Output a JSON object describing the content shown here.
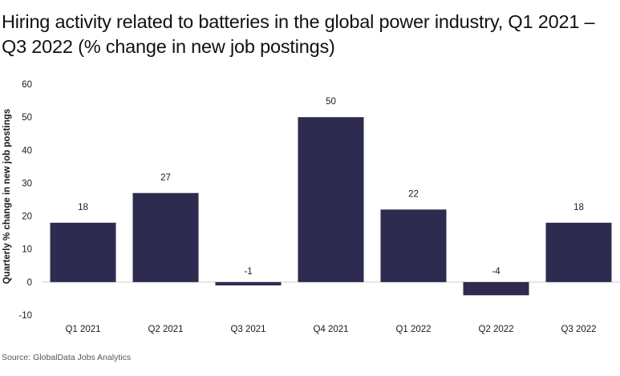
{
  "title": "Hiring activity related to batteries in the global power industry, Q1 2021 – Q3 2022 (% change in new job postings)",
  "source": "Source: GlobalData Jobs Analytics",
  "colors": {
    "bar": "#2e2b50",
    "axis": "#cccccc",
    "text": "#1a1a1a"
  },
  "chart_data": {
    "type": "bar",
    "title": "Hiring activity related to batteries in the global power industry, Q1 2021 – Q3 2022 (% change in new job postings)",
    "xlabel": "",
    "ylabel": "Quarterly % change in new job postings",
    "categories": [
      "Q1 2021",
      "Q2 2021",
      "Q3 2021",
      "Q4 2021",
      "Q1 2022",
      "Q2 2022",
      "Q3 2022"
    ],
    "values": [
      18,
      27,
      -1,
      50,
      22,
      -4,
      18
    ],
    "yticks": [
      -10,
      0,
      10,
      20,
      30,
      40,
      50,
      60
    ],
    "ylim": [
      -10,
      60
    ],
    "grid": false,
    "legend": "none"
  }
}
